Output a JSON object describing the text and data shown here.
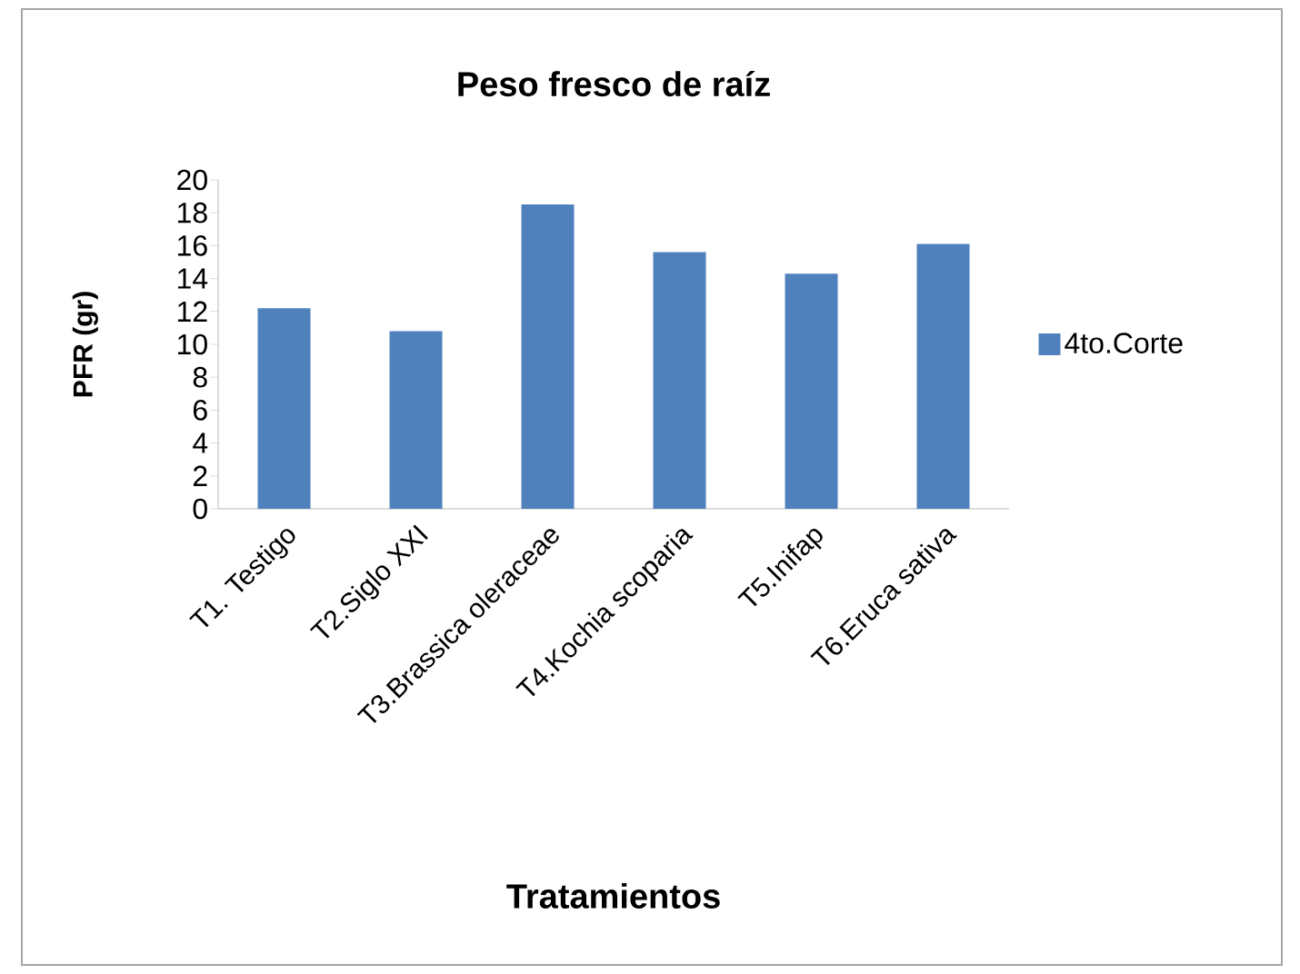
{
  "chart_data": {
    "type": "bar",
    "title": "Peso fresco de raíz",
    "xlabel": "Tratamientos",
    "ylabel": "PFR (gr)",
    "categories": [
      "T1. Testigo",
      "T2.Siglo XXI",
      "T3.Brassica oleraceae",
      "T4.Kochia scoparia",
      "T5.Inifap",
      "T6.Eruca sativa"
    ],
    "series": [
      {
        "name": "4to.Corte",
        "color": "#4f81bd",
        "values": [
          12.2,
          10.8,
          18.5,
          15.6,
          14.3,
          16.1
        ]
      }
    ],
    "ylim": [
      0,
      20
    ],
    "yticks": [
      0,
      2,
      4,
      6,
      8,
      10,
      12,
      14,
      16,
      18,
      20
    ],
    "legend": "right"
  }
}
